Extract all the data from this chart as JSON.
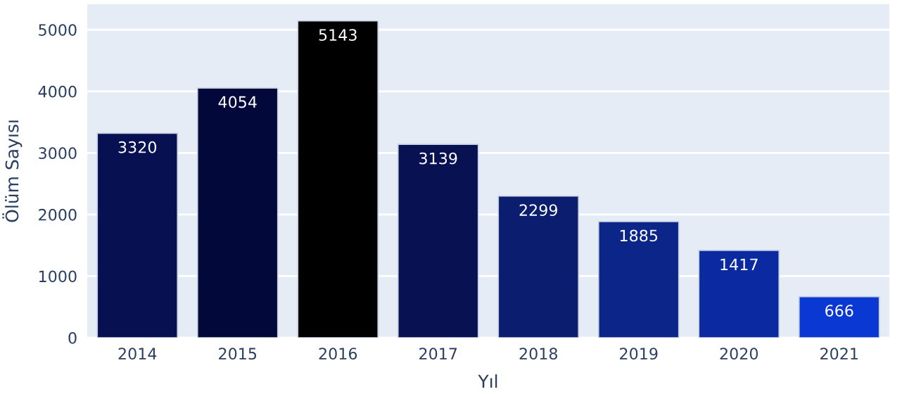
{
  "chart_data": {
    "type": "bar",
    "xlabel": "Yıl",
    "ylabel": "Ölüm Sayısı",
    "categories": [
      "2014",
      "2015",
      "2016",
      "2017",
      "2018",
      "2019",
      "2020",
      "2021"
    ],
    "values": [
      3320,
      4054,
      5143,
      3139,
      2299,
      1885,
      1417,
      666
    ],
    "colors": [
      "#071050",
      "#03083a",
      "#000000",
      "#081252",
      "#0b1d6e",
      "#0c2588",
      "#0b2aa2",
      "#0a38d2"
    ],
    "ylim": [
      0,
      5414
    ],
    "yticks": [
      0,
      1000,
      2000,
      3000,
      4000,
      5000
    ],
    "grid": "y",
    "data_labels": true
  }
}
